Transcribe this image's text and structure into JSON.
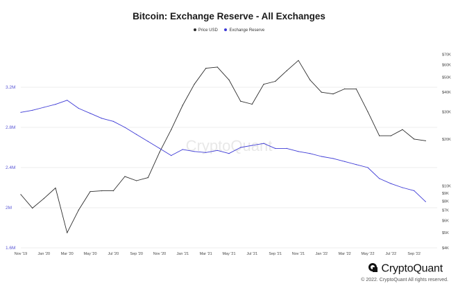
{
  "title": "Bitcoin: Exchange Reserve - All Exchanges",
  "brand": {
    "name": "CryptoQuant",
    "copyright": "© 2022. CryptoQuant All rights reserved."
  },
  "watermark": "CryptoQuant",
  "colors": {
    "price": "#2b2b2b",
    "reserve": "#3d3ad6",
    "left_axis_text": "#5a57d6",
    "grid": "#eeeeee"
  },
  "chart_data": {
    "type": "line",
    "title": "Bitcoin: Exchange Reserve - All Exchanges",
    "legend_position": "top-center",
    "grid": true,
    "x_tick_labels": [
      "Nov '19",
      "Jan '20",
      "Mar '20",
      "May '20",
      "Jul '20",
      "Sep '20",
      "Nov '20",
      "Jan '21",
      "Mar '21",
      "May '21",
      "Jul '21",
      "Sep '21",
      "Nov '21",
      "Jan '22",
      "Mar '22",
      "May '22",
      "Jul '22",
      "Sep '22"
    ],
    "left_axis": {
      "ticks": [
        "1.6M",
        "2M",
        "2.4M",
        "2.8M",
        "3.2M"
      ],
      "ylim": [
        1600000,
        3600000
      ]
    },
    "right_axis": {
      "scale": "log",
      "ticks": [
        "$4K",
        "$5K",
        "$6K",
        "$7K",
        "$8K",
        "$9K",
        "$10K",
        "$20K",
        "$30K",
        "$40K",
        "$50K",
        "$60K",
        "$70K"
      ],
      "ylim": [
        4000,
        78000
      ]
    },
    "series": [
      {
        "name": "Price USD",
        "axis": "right",
        "x": [
          "Nov '19",
          "Dec '19",
          "Jan '20",
          "Feb '20",
          "Mar '20",
          "Apr '20",
          "May '20",
          "Jun '20",
          "Jul '20",
          "Aug '20",
          "Sep '20",
          "Oct '20",
          "Nov '20",
          "Dec '20",
          "Jan '21",
          "Feb '21",
          "Mar '21",
          "Apr '21",
          "May '21",
          "Jun '21",
          "Jul '21",
          "Aug '21",
          "Sep '21",
          "Oct '21",
          "Nov '21",
          "Dec '21",
          "Jan '22",
          "Feb '22",
          "Mar '22",
          "Apr '22",
          "May '22",
          "Jun '22",
          "Jul '22",
          "Aug '22",
          "Sep '22",
          "Oct '22"
        ],
        "values": [
          8800,
          7200,
          8300,
          9700,
          5000,
          7000,
          9200,
          9300,
          9300,
          11500,
          10800,
          11300,
          16500,
          23000,
          33000,
          45000,
          57000,
          58000,
          48000,
          35000,
          33500,
          45000,
          47000,
          55000,
          64000,
          48000,
          40000,
          39000,
          42000,
          42000,
          30000,
          21000,
          21000,
          23000,
          20000,
          19500
        ]
      },
      {
        "name": "Exchange Reserve",
        "axis": "left",
        "x": [
          "Nov '19",
          "Dec '19",
          "Jan '20",
          "Feb '20",
          "Mar '20",
          "Apr '20",
          "May '20",
          "Jun '20",
          "Jul '20",
          "Aug '20",
          "Sep '20",
          "Oct '20",
          "Nov '20",
          "Dec '20",
          "Jan '21",
          "Feb '21",
          "Mar '21",
          "Apr '21",
          "May '21",
          "Jun '21",
          "Jul '21",
          "Aug '21",
          "Sep '21",
          "Oct '21",
          "Nov '21",
          "Dec '21",
          "Jan '22",
          "Feb '22",
          "Mar '22",
          "Apr '22",
          "May '22",
          "Jun '22",
          "Jul '22",
          "Aug '22",
          "Sep '22",
          "Oct '22"
        ],
        "values": [
          2950000,
          2970000,
          3000000,
          3030000,
          3070000,
          2990000,
          2940000,
          2890000,
          2860000,
          2800000,
          2730000,
          2660000,
          2590000,
          2520000,
          2580000,
          2560000,
          2550000,
          2570000,
          2540000,
          2600000,
          2620000,
          2640000,
          2590000,
          2590000,
          2560000,
          2540000,
          2510000,
          2490000,
          2460000,
          2430000,
          2400000,
          2290000,
          2240000,
          2200000,
          2170000,
          2060000
        ]
      }
    ]
  }
}
